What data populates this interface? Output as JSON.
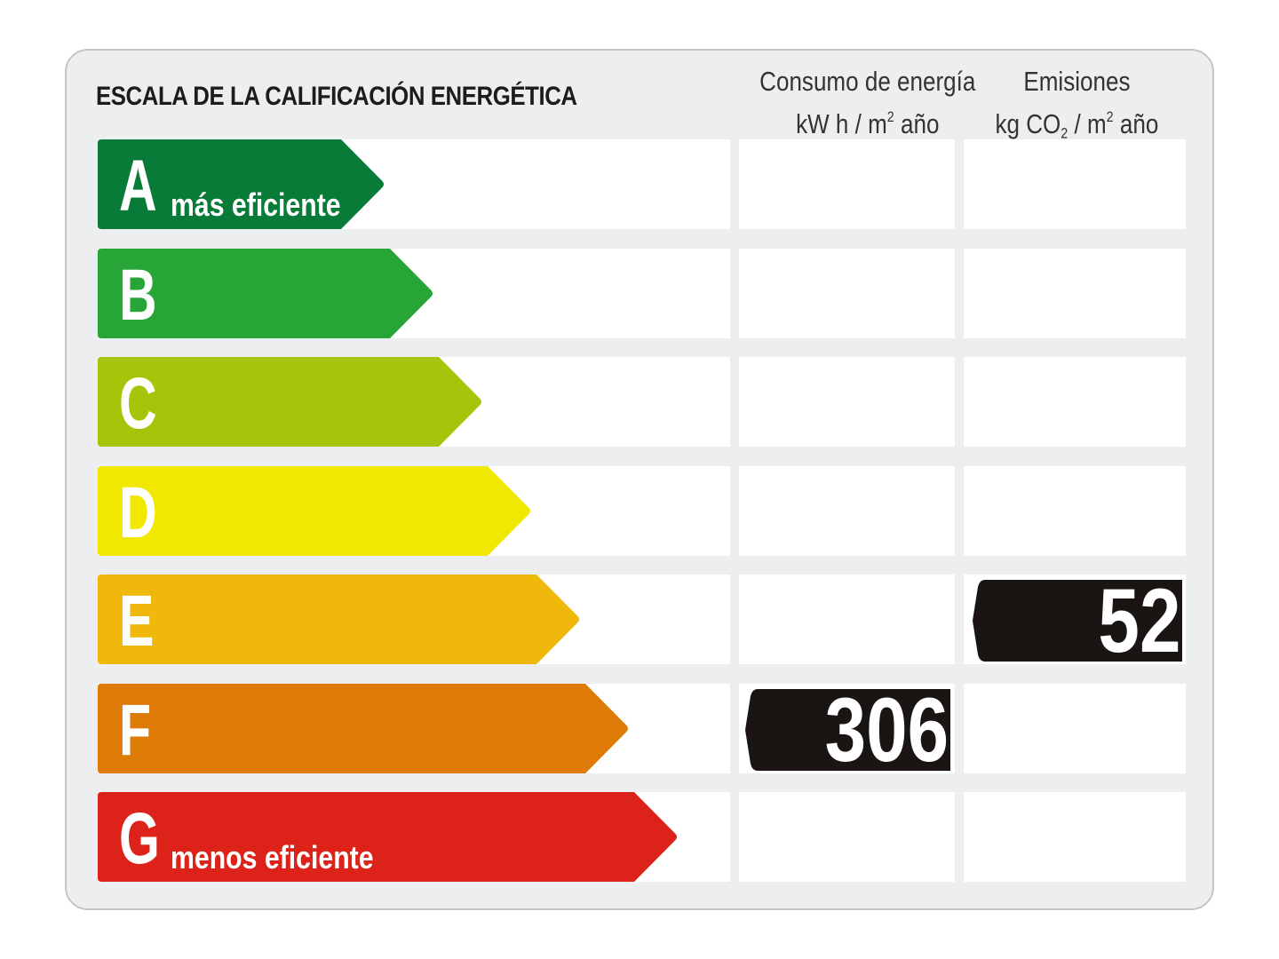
{
  "header": {
    "title": "ESCALA DE LA CALIFICACIÓN ENERGÉTICA",
    "consumo_line1": "Consumo de energía",
    "consumo_unit_a": "kW h / m",
    "consumo_unit_sup": "2",
    "consumo_unit_b": " año",
    "emisiones_line1": "Emisiones",
    "emisiones_unit_a": "kg CO",
    "emisiones_unit_sub": "2",
    "emisiones_unit_b": " / m",
    "emisiones_unit_sup": "2",
    "emisiones_unit_c": " año"
  },
  "ratings": [
    {
      "letter": "A",
      "label": "más eficiente",
      "color": "#087b39"
    },
    {
      "letter": "B",
      "label": "",
      "color": "#27a536"
    },
    {
      "letter": "C",
      "label": "",
      "color": "#a4c50a"
    },
    {
      "letter": "D",
      "label": "",
      "color": "#f0e800"
    },
    {
      "letter": "E",
      "label": "",
      "color": "#f0b80a"
    },
    {
      "letter": "F",
      "label": "",
      "color": "#de7a06"
    },
    {
      "letter": "G",
      "label": "menos eficiente",
      "color": "#dd2219"
    }
  ],
  "consumo": {
    "value": "306",
    "rating": "F"
  },
  "emisiones": {
    "value": "52",
    "rating": "E"
  }
}
